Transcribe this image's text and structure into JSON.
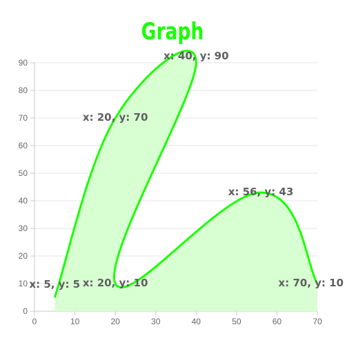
{
  "chart_data": {
    "type": "area",
    "title": "Graph",
    "xlabel": "",
    "ylabel": "",
    "xlim": [
      0,
      70
    ],
    "ylim": [
      0,
      90
    ],
    "xticks": [
      0,
      10,
      20,
      30,
      40,
      50,
      60,
      70
    ],
    "yticks": [
      0,
      10,
      20,
      30,
      40,
      50,
      60,
      70,
      80,
      90
    ],
    "grid": true,
    "series": [
      {
        "points": [
          {
            "x": 5,
            "y": 5,
            "label": "x: 5, y: 5"
          },
          {
            "x": 20,
            "y": 70,
            "label": "x: 20, y: 70"
          },
          {
            "x": 40,
            "y": 90,
            "label": "x: 40, y: 90"
          },
          {
            "x": 20,
            "y": 10,
            "label": "x: 20, y: 10"
          },
          {
            "x": 56,
            "y": 43,
            "label": "x: 56, y: 43"
          },
          {
            "x": 70,
            "y": 10,
            "label": "x: 70, y: 10"
          }
        ]
      }
    ],
    "colors": {
      "line": "#19ff00",
      "fill": "#d6ffd0",
      "title": "#19ff00",
      "grid": "#e6e6e6",
      "axis": "#c8c8c8",
      "tick": "#666666",
      "label": "#5f5f5f"
    }
  }
}
